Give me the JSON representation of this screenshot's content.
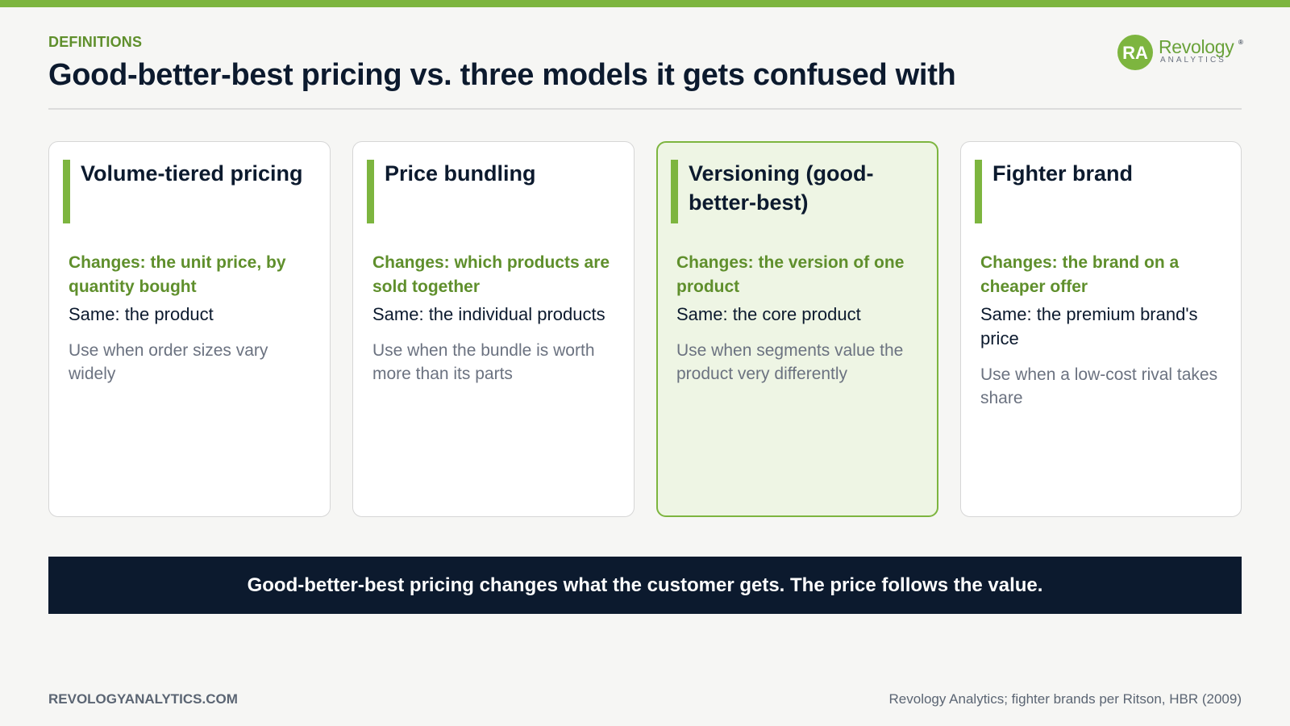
{
  "header": {
    "eyebrow": "DEFINITIONS",
    "title": "Good-better-best pricing vs. three models it gets confused with"
  },
  "logo": {
    "initials": "RA",
    "word": "Revology",
    "registered": "®",
    "sub": "ANALYTICS"
  },
  "cards": [
    {
      "title": "Volume-tiered pricing",
      "changes": "Changes: the unit price, by quantity bought",
      "same": "Same: the product",
      "use_when": "Use when order sizes vary widely",
      "highlighted": false
    },
    {
      "title": "Price bundling",
      "changes": "Changes: which products are sold together",
      "same": "Same: the individual products",
      "use_when": "Use when the bundle is worth more than its parts",
      "highlighted": false
    },
    {
      "title": "Versioning (good-better-best)",
      "changes": "Changes: the version of one product",
      "same": "Same: the core product",
      "use_when": "Use when segments value the product very differently",
      "highlighted": true
    },
    {
      "title": "Fighter brand",
      "changes": "Changes: the brand on a cheaper offer",
      "same": "Same: the premium brand's price",
      "use_when": "Use when a low-cost rival takes share",
      "highlighted": false
    }
  ],
  "banner": {
    "text": "Good-better-best pricing changes what the customer gets. The price follows the value."
  },
  "footer": {
    "site": "REVOLOGYANALYTICS.COM",
    "source": "Revology Analytics; fighter brands per Ritson, HBR (2009)"
  },
  "colors": {
    "accent": "#7db53f",
    "accent_text": "#5f8f2c",
    "navy": "#0c1a2e",
    "highlight_bg": "#eef5e4"
  }
}
